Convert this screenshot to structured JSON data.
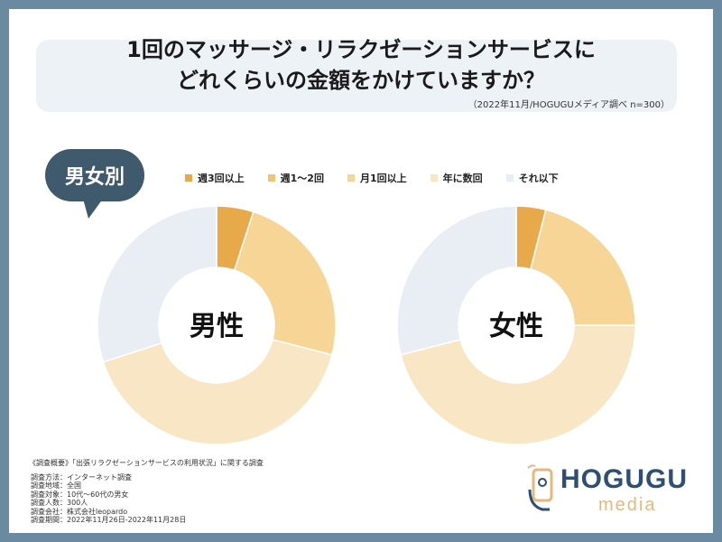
{
  "title": {
    "line1": "1回のマッサージ・リラクゼーションサービスに",
    "line2": "どれくらいの金額をかけていますか？"
  },
  "survey_note": "（2022年11月/HOGUGUメディア調べ n=300）",
  "bubble_label": "男女別",
  "colors": {
    "background": "#6a8aa2",
    "bubble": "#3f5a6d",
    "weekly_3plus": "#e8a94a",
    "weekly_1to2": "#f0c477",
    "monthly_1plus": "#f6d597",
    "few_per_year": "#f9e6c4",
    "less": "#e8eef4"
  },
  "chart_data": [
    {
      "type": "pie",
      "donut": true,
      "center_label": "男性",
      "categories": [
        "週3回以上",
        "週1〜2回",
        "月1回以上",
        "年に数回",
        "それ以下"
      ],
      "values": [
        5,
        0,
        24,
        41,
        30
      ],
      "colors": [
        "#e8a94a",
        "#f0c477",
        "#f6d597",
        "#f9e6c4",
        "#e8eef4"
      ]
    },
    {
      "type": "pie",
      "donut": true,
      "center_label": "女性",
      "categories": [
        "週3回以上",
        "週1〜2回",
        "月1回以上",
        "年に数回",
        "それ以下"
      ],
      "values": [
        4,
        0,
        21,
        46,
        29
      ],
      "colors": [
        "#e8a94a",
        "#f0c477",
        "#f6d597",
        "#f9e6c4",
        "#e8eef4"
      ]
    }
  ],
  "legend": [
    {
      "label": "週3回以上",
      "color": "#e8a94a"
    },
    {
      "label": "週1〜2回",
      "color": "#f0c477"
    },
    {
      "label": "月1回以上",
      "color": "#f6d597"
    },
    {
      "label": "年に数回",
      "color": "#f9e6c4"
    },
    {
      "label": "それ以下",
      "color": "#e8eef4"
    }
  ],
  "overview": {
    "heading": "《調査概要》「出張リラクゼーションサービスの利用状況」に関する調査",
    "rows": [
      "調査方法：インターネット調査",
      "調査地域：全国",
      "調査対象：10代〜60代の男女",
      "調査人数：300人",
      "調査会社：株式会社leopardo",
      "調査期間：2022年11月26日-2022年11月28日"
    ]
  },
  "logo": {
    "name": "HOGUGU",
    "sub": "media"
  }
}
